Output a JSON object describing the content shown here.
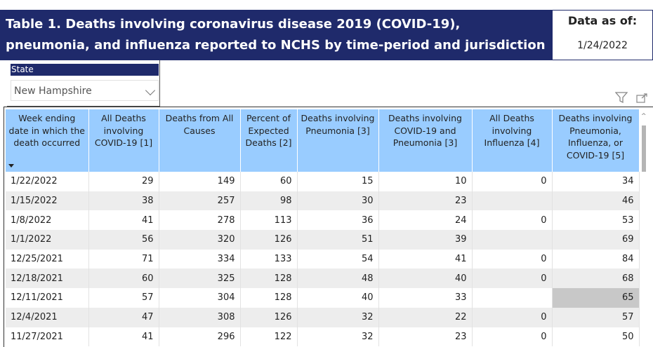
{
  "header": {
    "title": "Table 1. Deaths involving coronavirus disease 2019 (COVID-19), pneumonia, and influenza reported to NCHS by time-period and jurisdiction of occurrence.",
    "data_as_of_label": "Data as of:",
    "data_as_of_date": "1/24/2022"
  },
  "slicer": {
    "label": "State",
    "selected": "New Hampshire"
  },
  "icons": {
    "filter": "filter-icon",
    "focus_mode": "focus-mode-icon",
    "sort": "sort-descending-icon",
    "dropdown": "chevron-down-icon"
  },
  "colors": {
    "banner": "#1f2a6b",
    "header_fill": "#99ccff",
    "row_alt": "#ededed",
    "highlight": "#c8c8c8"
  },
  "table": {
    "columns": [
      "Week ending date in which the death occurred",
      "All Deaths involving COVID-19 [1]",
      "Deaths from All Causes",
      "Percent of Expected Deaths [2]",
      "Deaths involving Pneumonia [3]",
      "Deaths involving COVID-19 and Pneumonia [3]",
      "All Deaths involving Influenza [4]",
      "Deaths involving Pneumonia, Influenza, or COVID-19 [5]"
    ],
    "rows": [
      [
        "1/22/2022",
        "29",
        "149",
        "60",
        "15",
        "10",
        "0",
        "34"
      ],
      [
        "1/15/2022",
        "38",
        "257",
        "98",
        "30",
        "23",
        "",
        "46"
      ],
      [
        "1/8/2022",
        "41",
        "278",
        "113",
        "36",
        "24",
        "0",
        "53"
      ],
      [
        "1/1/2022",
        "56",
        "320",
        "126",
        "51",
        "39",
        "",
        "69"
      ],
      [
        "12/25/2021",
        "71",
        "334",
        "133",
        "54",
        "41",
        "0",
        "84"
      ],
      [
        "12/18/2021",
        "60",
        "325",
        "128",
        "48",
        "40",
        "0",
        "68"
      ],
      [
        "12/11/2021",
        "57",
        "304",
        "128",
        "40",
        "33",
        "",
        "65"
      ],
      [
        "12/4/2021",
        "47",
        "308",
        "126",
        "32",
        "22",
        "0",
        "57"
      ],
      [
        "11/27/2021",
        "41",
        "296",
        "122",
        "32",
        "23",
        "0",
        "50"
      ]
    ]
  }
}
